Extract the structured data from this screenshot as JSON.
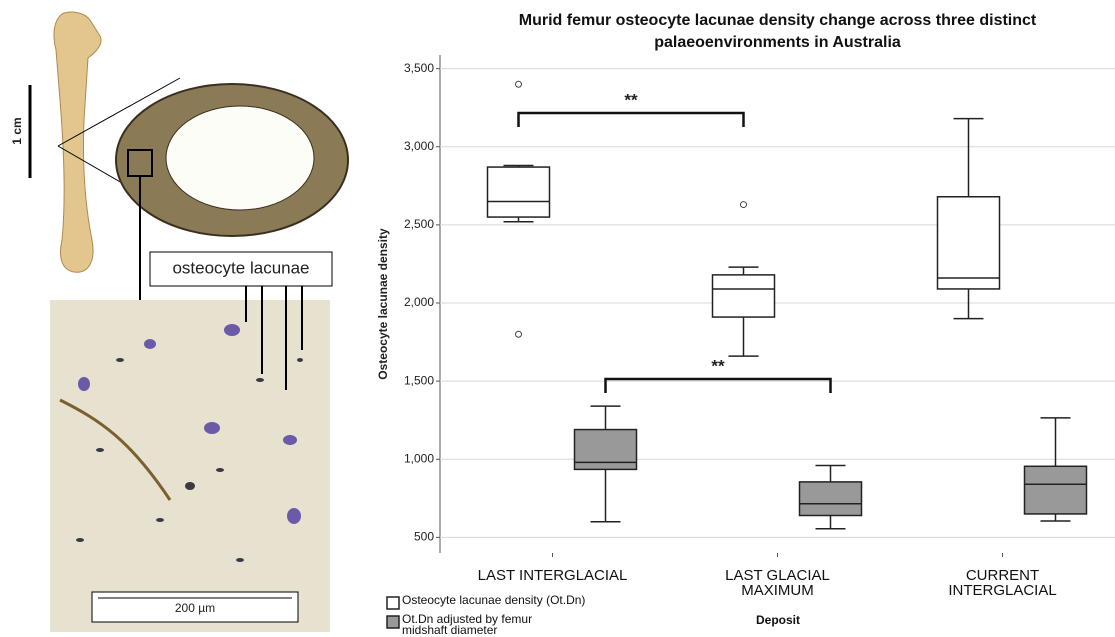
{
  "panel": {
    "scale_bar_bone": "1 cm",
    "callout": "osteocyte lacunae",
    "scale_bar_micro": "200 µm"
  },
  "chart_data": {
    "type": "box",
    "title": "Murid femur osteocyte lacunae density change across three distinct palaeoenvironments in Australia",
    "x_label": "Deposit",
    "y_label": "Osteocyte lacunae density",
    "categories": [
      "LAST INTERGLACIAL",
      "LAST GLACIAL MAXIMUM",
      "CURRENT INTERGLACIAL"
    ],
    "ylim": [
      400,
      3600
    ],
    "yticks": [
      500,
      {
        "value": 1000,
        "label": "1,000"
      },
      {
        "value": 1500,
        "label": "1,500"
      },
      {
        "value": 2000,
        "label": "2,000"
      },
      {
        "value": 2500,
        "label": "2,500"
      },
      {
        "value": 3000,
        "label": "3,000"
      },
      {
        "value": 3500,
        "label": "3,500"
      }
    ],
    "grid": true,
    "series": [
      {
        "name": "Osteocyte lacunae density (Ot.Dn)",
        "color": "#ffffff",
        "boxes": [
          {
            "min": 2520,
            "q1": 2550,
            "median": 2650,
            "q3": 2870,
            "max": 2880,
            "outliers": [
              3400,
              1800
            ]
          },
          {
            "min": 1660,
            "q1": 1910,
            "median": 2090,
            "q3": 2180,
            "max": 2230,
            "outliers": [
              2630
            ]
          },
          {
            "min": 1900,
            "q1": 2090,
            "median": 2160,
            "q3": 2680,
            "max": 3180,
            "outliers": []
          }
        ]
      },
      {
        "name": "Ot.Dn adjusted by femur midshaft diameter",
        "color": "#999999",
        "boxes": [
          {
            "min": 600,
            "q1": 935,
            "median": 980,
            "q3": 1190,
            "max": 1340,
            "outliers": []
          },
          {
            "min": 555,
            "q1": 640,
            "median": 715,
            "q3": 855,
            "max": 960,
            "outliers": []
          },
          {
            "min": 605,
            "q1": 650,
            "median": 840,
            "q3": 955,
            "max": 1265,
            "outliers": []
          }
        ]
      }
    ],
    "annotations": [
      {
        "text": "**"
      },
      {
        "text": "**"
      }
    ]
  }
}
